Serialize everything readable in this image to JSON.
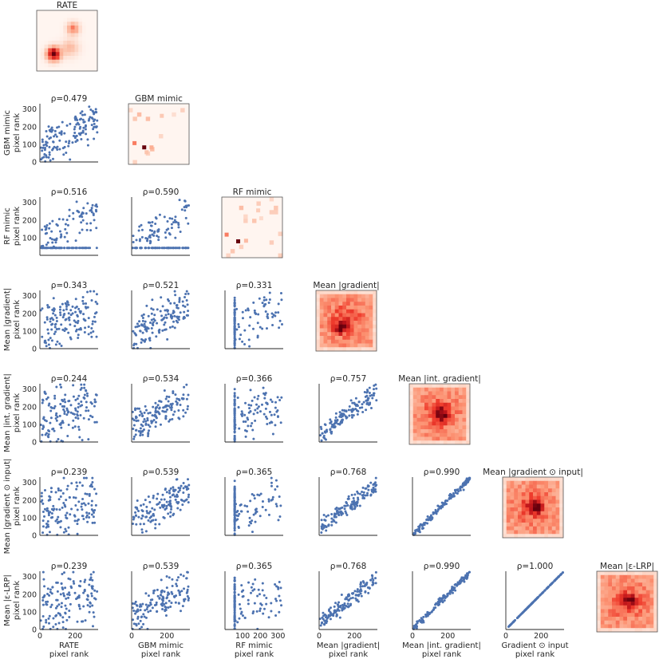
{
  "figure": {
    "methods": [
      "RATE",
      "GBM mimic",
      "RF mimic",
      "Mean |gradient|",
      "Mean |int. gradient|",
      "Mean |gradient ⊙ input|",
      "Mean |ε-LRP|"
    ],
    "ylabel_lines": [
      [
        "GBM mimic",
        "pixel rank"
      ],
      [
        "RF mimic",
        "pixel rank"
      ],
      [
        "Mean |gradient|",
        "pixel rank"
      ],
      [
        "Mean |int. gradient|",
        "pixel rank"
      ],
      [
        "Mean |gradient ⊙ input|",
        "pixel rank"
      ],
      [
        "Mean |ε-LRP|",
        "pixel rank"
      ]
    ],
    "xlabel_lines": [
      [
        "RATE",
        "pixel rank"
      ],
      [
        "GBM mimic",
        "pixel rank"
      ],
      [
        "RF mimic",
        "pixel rank"
      ],
      [
        "Mean |gradient|",
        "pixel rank"
      ],
      [
        "Mean |int. gradient|",
        "pixel rank"
      ],
      [
        "Gradient ⊙ input",
        "pixel rank"
      ]
    ],
    "colors": {
      "scatter": "#4c72b0",
      "heat_low": "#fff5f0",
      "heat_mid": "#ef3b2c",
      "heat_high": "#67000d",
      "axis": "#262626"
    }
  },
  "chart_data": {
    "type": "scatter",
    "description": "Lower-triangular pairwise comparison of pixel-rank attributions; diagonal shows mean attribution heatmaps.",
    "x_range": [
      0,
      330
    ],
    "y_range": [
      0,
      330
    ],
    "x_ticks": [
      0,
      200
    ],
    "x_ticks_rf": [
      100,
      200,
      300
    ],
    "y_ticks": [
      0,
      100,
      200,
      300
    ],
    "y_ticks_rf": [
      100,
      200,
      300
    ],
    "correlations": [
      {
        "row": 1,
        "col": 0,
        "label": "ρ=0.479",
        "rho": 0.479
      },
      {
        "row": 2,
        "col": 0,
        "label": "ρ=0.516",
        "rho": 0.516
      },
      {
        "row": 2,
        "col": 1,
        "label": "ρ=0.590",
        "rho": 0.59
      },
      {
        "row": 3,
        "col": 0,
        "label": "ρ=0.343",
        "rho": 0.343
      },
      {
        "row": 3,
        "col": 1,
        "label": "ρ=0.521",
        "rho": 0.521
      },
      {
        "row": 3,
        "col": 2,
        "label": "ρ=0.331",
        "rho": 0.331
      },
      {
        "row": 4,
        "col": 0,
        "label": "ρ=0.244",
        "rho": 0.244
      },
      {
        "row": 4,
        "col": 1,
        "label": "ρ=0.534",
        "rho": 0.534
      },
      {
        "row": 4,
        "col": 2,
        "label": "ρ=0.366",
        "rho": 0.366
      },
      {
        "row": 4,
        "col": 3,
        "label": "ρ=0.757",
        "rho": 0.757
      },
      {
        "row": 5,
        "col": 0,
        "label": "ρ=0.239",
        "rho": 0.239
      },
      {
        "row": 5,
        "col": 1,
        "label": "ρ=0.539",
        "rho": 0.539
      },
      {
        "row": 5,
        "col": 2,
        "label": "ρ=0.365",
        "rho": 0.365
      },
      {
        "row": 5,
        "col": 3,
        "label": "ρ=0.768",
        "rho": 0.768
      },
      {
        "row": 5,
        "col": 4,
        "label": "ρ=0.990",
        "rho": 0.99
      },
      {
        "row": 6,
        "col": 0,
        "label": "ρ=0.239",
        "rho": 0.239
      },
      {
        "row": 6,
        "col": 1,
        "label": "ρ=0.539",
        "rho": 0.539
      },
      {
        "row": 6,
        "col": 2,
        "label": "ρ=0.365",
        "rho": 0.365
      },
      {
        "row": 6,
        "col": 3,
        "label": "ρ=0.768",
        "rho": 0.768
      },
      {
        "row": 6,
        "col": 4,
        "label": "ρ=0.990",
        "rho": 0.99
      },
      {
        "row": 6,
        "col": 5,
        "label": "ρ=1.000",
        "rho": 1.0
      }
    ],
    "heatmaps": [
      {
        "diag": 0,
        "title": "RATE",
        "pattern": "blob",
        "peak": [
          0.28,
          0.72
        ],
        "grid": 16
      },
      {
        "diag": 1,
        "title": "GBM mimic",
        "pattern": "sparse",
        "grid": 14
      },
      {
        "diag": 2,
        "title": "RF mimic",
        "pattern": "sparse",
        "grid": 14
      },
      {
        "diag": 3,
        "title": "Mean |gradient|",
        "pattern": "smooth",
        "peak": [
          0.4,
          0.62
        ],
        "grid": 16
      },
      {
        "diag": 4,
        "title": "Mean |int. gradient|",
        "pattern": "smooth",
        "peak": [
          0.55,
          0.5
        ],
        "grid": 16
      },
      {
        "diag": 5,
        "title": "Mean |gradient ⊙ input|",
        "pattern": "smooth",
        "peak": [
          0.55,
          0.5
        ],
        "grid": 16
      },
      {
        "diag": 6,
        "title": "Mean |ε-LRP|",
        "pattern": "smooth",
        "peak": [
          0.55,
          0.5
        ],
        "grid": 16
      }
    ],
    "n_points_per_scatter": 140
  }
}
